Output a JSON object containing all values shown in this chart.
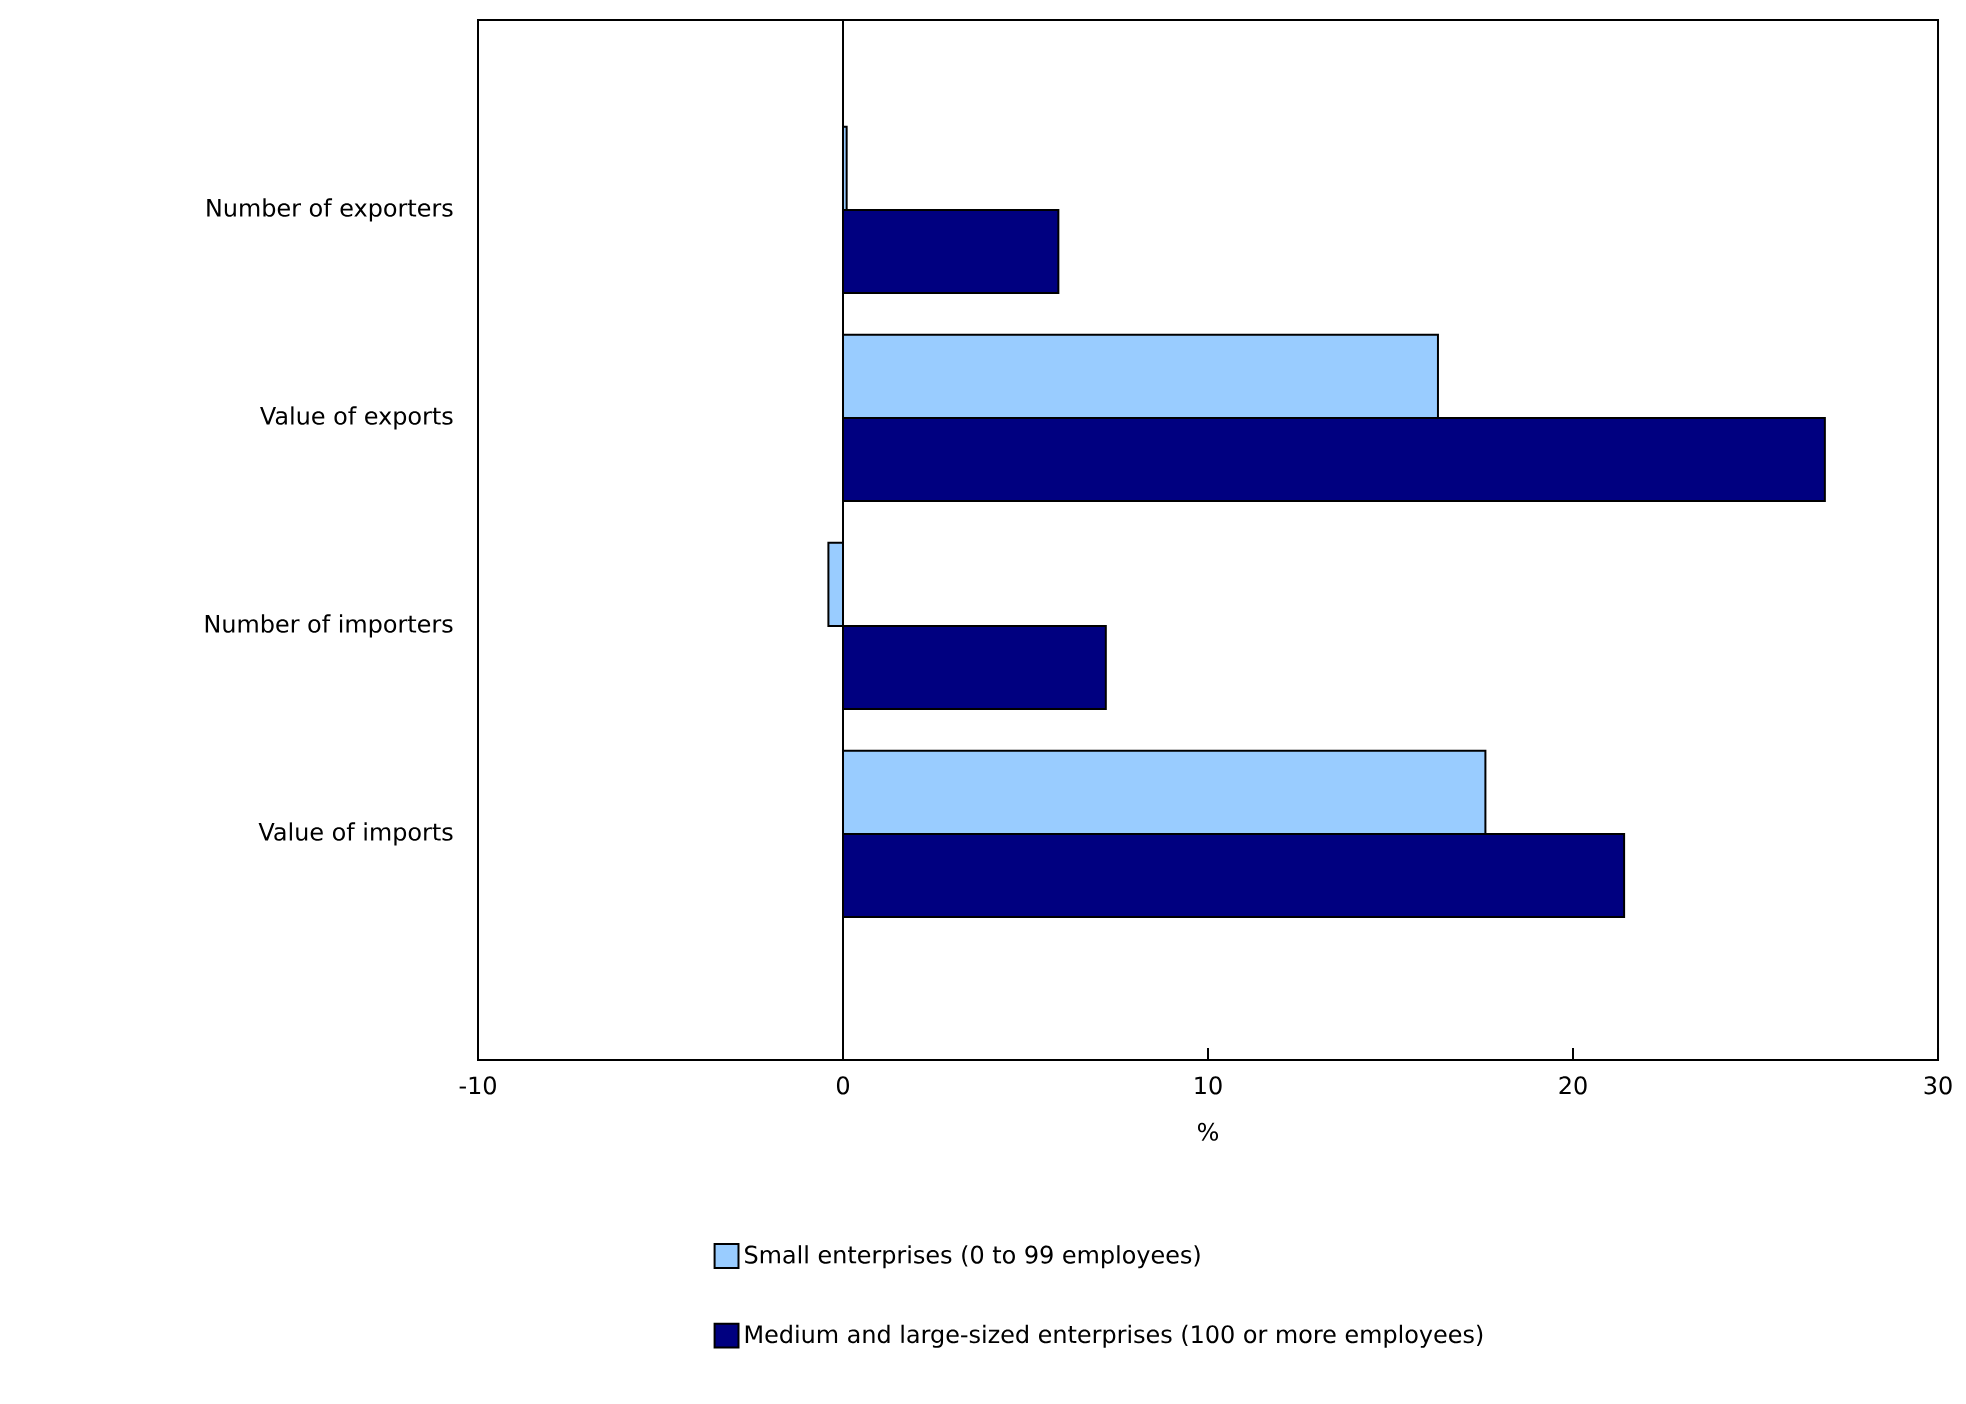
{
  "chart_data": {
    "type": "bar",
    "orientation": "horizontal",
    "xlabel": "%",
    "categories": [
      "Number of exporters",
      "Value of exports",
      "Number of importers",
      "Value of imports"
    ],
    "series": [
      {
        "name": "Small enterprises (0 to 99 employees)",
        "color": "#99ccff",
        "values": [
          0.1,
          16.3,
          -0.4,
          17.6
        ]
      },
      {
        "name": "Medium and large-sized enterprises (100 or more employees)",
        "color": "#000080",
        "values": [
          5.9,
          26.9,
          7.2,
          21.4
        ]
      }
    ],
    "xlim": [
      -10,
      30
    ],
    "xticks": [
      -10,
      0,
      10,
      20,
      30
    ],
    "ref_lines": [
      {
        "axis": "x",
        "value": 0
      }
    ],
    "grid": false,
    "legend": "bottom"
  }
}
